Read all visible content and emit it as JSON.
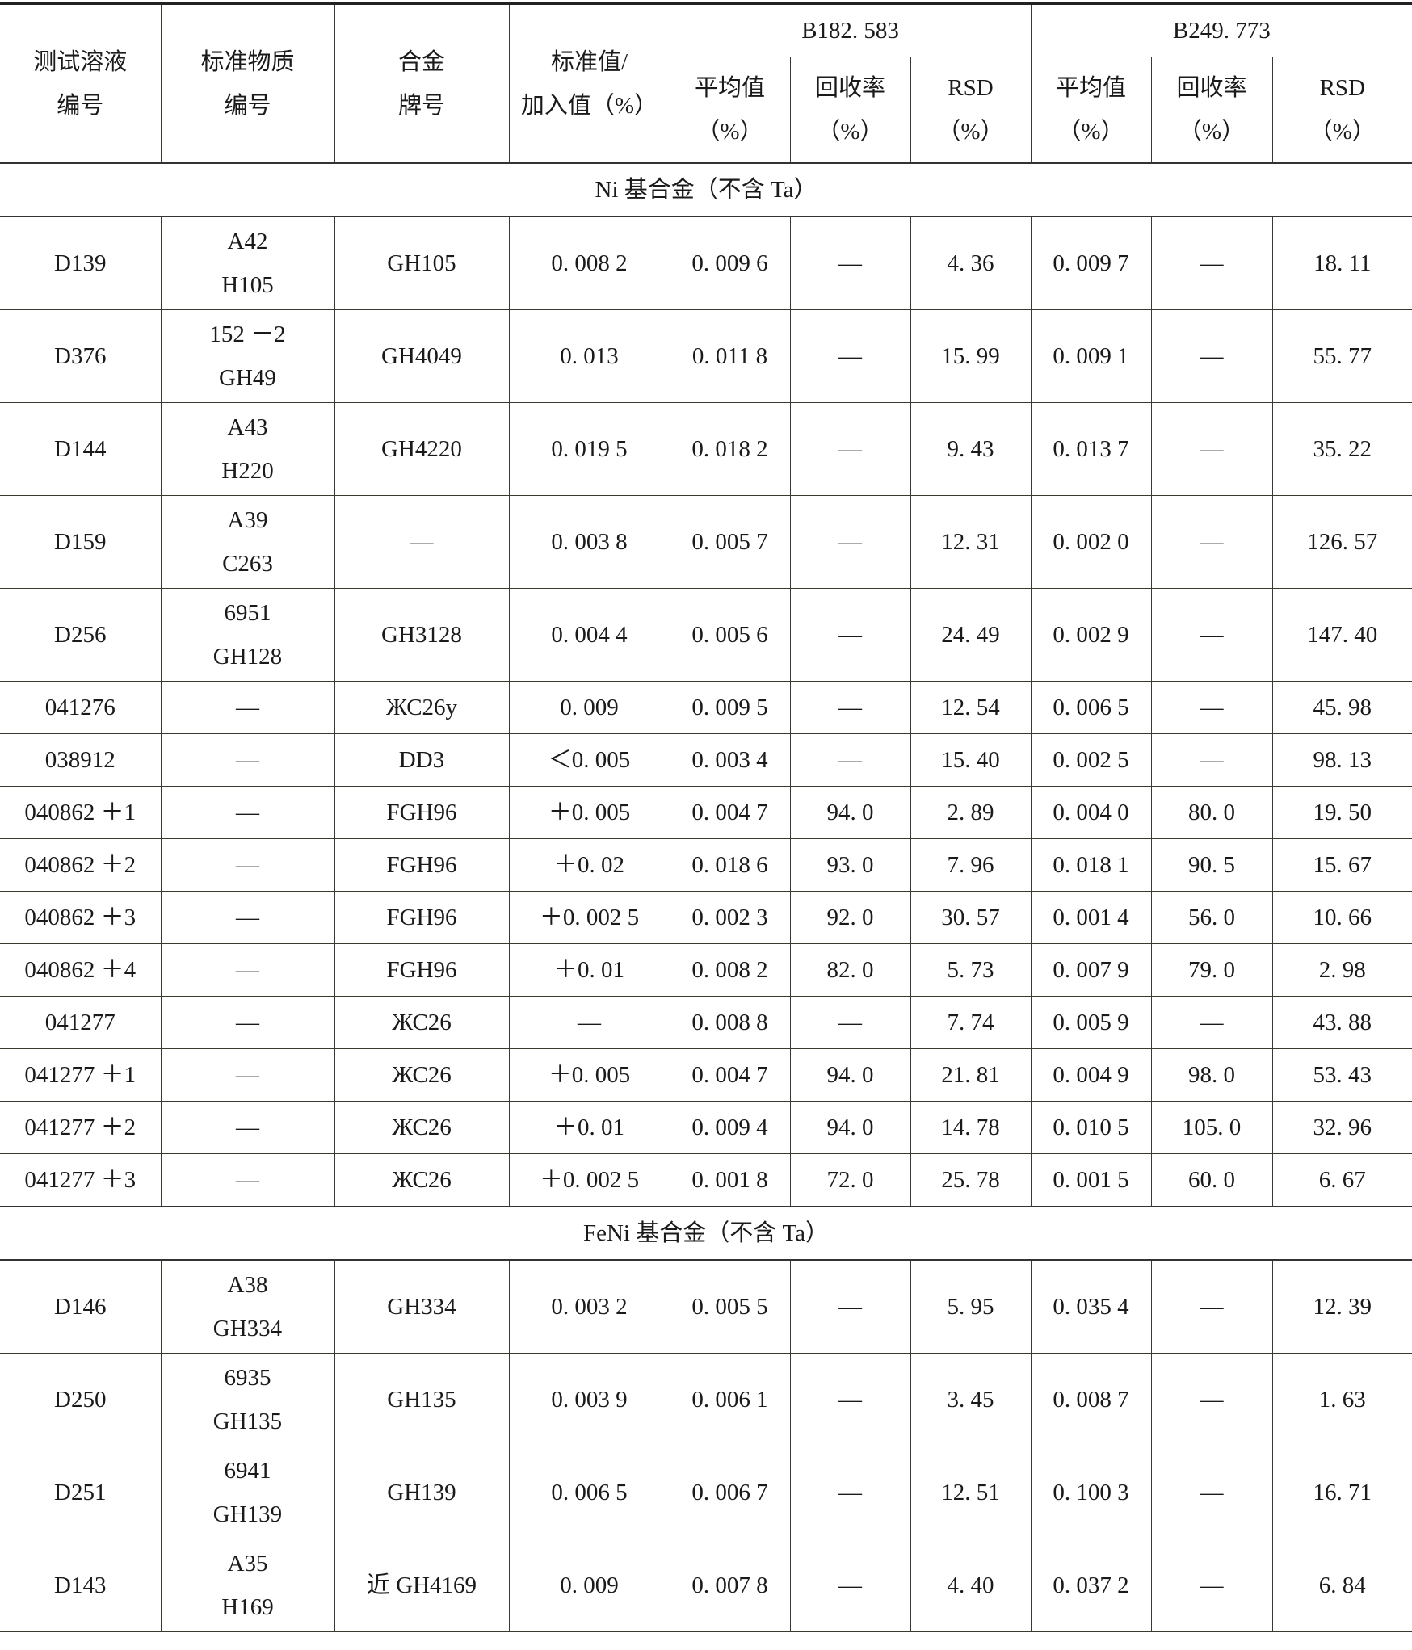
{
  "headers": {
    "solution_no": [
      "测试溶液",
      "编号"
    ],
    "std_material_no": [
      "标准物质",
      "编号"
    ],
    "alloy_grade": [
      "合金",
      "牌号"
    ],
    "std_value": [
      "标准值/",
      "加入值（%）"
    ],
    "line1": "B182. 583",
    "line2": "B249. 773",
    "sub": [
      [
        "平均值",
        "（%）"
      ],
      [
        "回收率",
        "（%）"
      ],
      [
        "RSD",
        "（%）"
      ],
      [
        "平均值",
        "（%）"
      ],
      [
        "回收率",
        "（%）"
      ],
      [
        "RSD",
        "（%）"
      ]
    ]
  },
  "sections": [
    {
      "title": "Ni 基合金（不含 Ta）",
      "rows": [
        {
          "id": "D139",
          "std": [
            "A42",
            "H105"
          ],
          "alloy": "GH105",
          "value": "0. 008 2",
          "m1": "0. 009 6",
          "r1": "—",
          "s1": "4. 36",
          "m2": "0. 009 7",
          "r2": "—",
          "s2": "18. 11"
        },
        {
          "id": "D376",
          "std": [
            "152 －2",
            "GH49"
          ],
          "alloy": "GH4049",
          "value": "0. 013",
          "m1": "0. 011 8",
          "r1": "—",
          "s1": "15. 99",
          "m2": "0. 009 1",
          "r2": "—",
          "s2": "55. 77"
        },
        {
          "id": "D144",
          "std": [
            "A43",
            "H220"
          ],
          "alloy": "GH4220",
          "value": "0. 019 5",
          "m1": "0. 018 2",
          "r1": "—",
          "s1": "9. 43",
          "m2": "0. 013 7",
          "r2": "—",
          "s2": "35. 22"
        },
        {
          "id": "D159",
          "std": [
            "A39",
            "C263"
          ],
          "alloy": "—",
          "value": "0. 003 8",
          "m1": "0. 005 7",
          "r1": "—",
          "s1": "12. 31",
          "m2": "0. 002 0",
          "r2": "—",
          "s2": "126. 57"
        },
        {
          "id": "D256",
          "std": [
            "6951",
            "GH128"
          ],
          "alloy": "GH3128",
          "value": "0. 004 4",
          "m1": "0. 005 6",
          "r1": "—",
          "s1": "24. 49",
          "m2": "0. 002 9",
          "r2": "—",
          "s2": "147. 40"
        },
        {
          "id": "041276",
          "std": [
            "—"
          ],
          "alloy": "ЖС26у",
          "value": "0. 009",
          "m1": "0. 009 5",
          "r1": "—",
          "s1": "12. 54",
          "m2": "0. 006 5",
          "r2": "—",
          "s2": "45. 98"
        },
        {
          "id": "038912",
          "std": [
            "—"
          ],
          "alloy": "DD3",
          "value": "＜0. 005",
          "m1": "0. 003 4",
          "r1": "—",
          "s1": "15. 40",
          "m2": "0. 002 5",
          "r2": "—",
          "s2": "98. 13"
        },
        {
          "id": "040862 ＋1",
          "std": [
            "—"
          ],
          "alloy": "FGH96",
          "value": "＋0. 005",
          "m1": "0. 004 7",
          "r1": "94. 0",
          "s1": "2. 89",
          "m2": "0. 004 0",
          "r2": "80. 0",
          "s2": "19. 50"
        },
        {
          "id": "040862 ＋2",
          "std": [
            "—"
          ],
          "alloy": "FGH96",
          "value": "＋0. 02",
          "m1": "0. 018 6",
          "r1": "93. 0",
          "s1": "7. 96",
          "m2": "0. 018 1",
          "r2": "90. 5",
          "s2": "15. 67"
        },
        {
          "id": "040862 ＋3",
          "std": [
            "—"
          ],
          "alloy": "FGH96",
          "value": "＋0. 002 5",
          "m1": "0. 002 3",
          "r1": "92. 0",
          "s1": "30. 57",
          "m2": "0. 001 4",
          "r2": "56. 0",
          "s2": "10. 66"
        },
        {
          "id": "040862 ＋4",
          "std": [
            "—"
          ],
          "alloy": "FGH96",
          "value": "＋0. 01",
          "m1": "0. 008 2",
          "r1": "82. 0",
          "s1": "5. 73",
          "m2": "0. 007 9",
          "r2": "79. 0",
          "s2": "2. 98"
        },
        {
          "id": "041277",
          "std": [
            "—"
          ],
          "alloy": "ЖС26",
          "value": "—",
          "m1": "0. 008 8",
          "r1": "—",
          "s1": "7. 74",
          "m2": "0. 005 9",
          "r2": "—",
          "s2": "43. 88"
        },
        {
          "id": "041277 ＋1",
          "std": [
            "—"
          ],
          "alloy": "ЖС26",
          "value": "＋0. 005",
          "m1": "0. 004 7",
          "r1": "94. 0",
          "s1": "21. 81",
          "m2": "0. 004 9",
          "r2": "98. 0",
          "s2": "53. 43"
        },
        {
          "id": "041277 ＋2",
          "std": [
            "—"
          ],
          "alloy": "ЖС26",
          "value": "＋0. 01",
          "m1": "0. 009 4",
          "r1": "94. 0",
          "s1": "14. 78",
          "m2": "0. 010 5",
          "r2": "105. 0",
          "s2": "32. 96"
        },
        {
          "id": "041277 ＋3",
          "std": [
            "—"
          ],
          "alloy": "ЖС26",
          "value": "＋0. 002 5",
          "m1": "0. 001 8",
          "r1": "72. 0",
          "s1": "25. 78",
          "m2": "0. 001 5",
          "r2": "60. 0",
          "s2": "6. 67"
        }
      ]
    },
    {
      "title": "FeNi 基合金（不含 Ta）",
      "rows": [
        {
          "id": "D146",
          "std": [
            "A38",
            "GH334"
          ],
          "alloy": "GH334",
          "value": "0. 003 2",
          "m1": "0. 005 5",
          "r1": "—",
          "s1": "5. 95",
          "m2": "0. 035 4",
          "r2": "—",
          "s2": "12. 39"
        },
        {
          "id": "D250",
          "std": [
            "6935",
            "GH135"
          ],
          "alloy": "GH135",
          "value": "0. 003 9",
          "m1": "0. 006 1",
          "r1": "—",
          "s1": "3. 45",
          "m2": "0. 008 7",
          "r2": "—",
          "s2": "1. 63"
        },
        {
          "id": "D251",
          "std": [
            "6941",
            "GH139"
          ],
          "alloy": "GH139",
          "value": "0. 006 5",
          "m1": "0. 006 7",
          "r1": "—",
          "s1": "12. 51",
          "m2": "0. 100 3",
          "r2": "—",
          "s2": "16. 71"
        },
        {
          "id": "D143",
          "std": [
            "A35",
            "H169"
          ],
          "alloy": "近 GH4169",
          "value": "0. 009",
          "m1": "0. 007 8",
          "r1": "—",
          "s1": "4. 40",
          "m2": "0. 037 2",
          "r2": "—",
          "s2": "6. 84"
        }
      ]
    }
  ]
}
